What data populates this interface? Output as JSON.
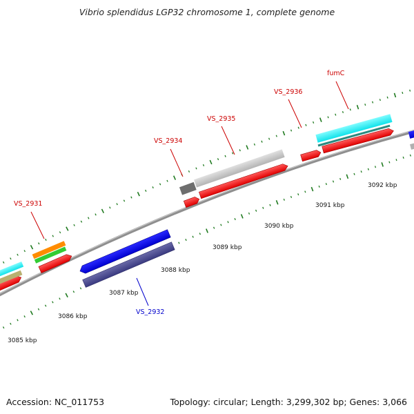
{
  "title": "Vibrio splendidus LGP32 chromosome 1, complete genome",
  "footer": {
    "accession": "Accession: NC_011753",
    "topology": "Topology: circular; Length: 3,299,302 bp; Genes: 3,066"
  },
  "colors": {
    "backbone": "#8a8a8a",
    "tick": "#1f7a1f",
    "forward_gene": "#ff0000",
    "reverse_gene_label": "#0000cc",
    "label_forward": "#cc0000"
  },
  "scale_labels": [
    "3085 kbp",
    "3086 kbp",
    "3087 kbp",
    "3088 kbp",
    "3089 kbp",
    "3090 kbp",
    "3091 kbp",
    "3092 kbp"
  ],
  "gene_labels": [
    {
      "id": "VS_2931",
      "strand": "forward"
    },
    {
      "id": "VS_2932",
      "strand": "reverse"
    },
    {
      "id": "VS_2934",
      "strand": "forward"
    },
    {
      "id": "VS_2935",
      "strand": "forward"
    },
    {
      "id": "VS_2936",
      "strand": "forward"
    },
    {
      "id": "fumC",
      "strand": "forward"
    }
  ]
}
